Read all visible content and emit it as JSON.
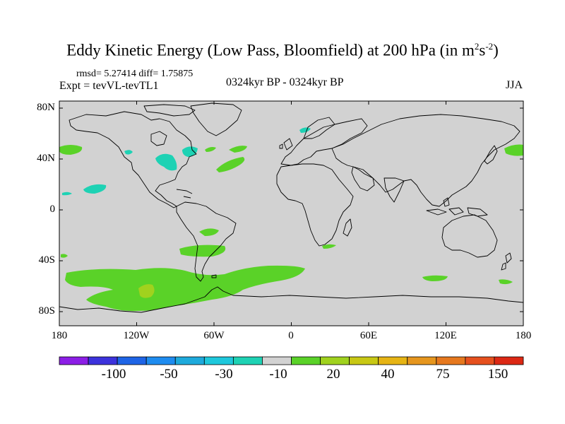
{
  "title": {
    "main": "Eddy Kinetic Energy (Low Pass, Bloomfield) at 200 hPa (in m",
    "sup1": "2",
    "mid": "s",
    "sup2": "-2",
    "end": ")"
  },
  "stats": "rmsd= 5.27414 diff= 1.75875",
  "expt": "Expt = tevVL-tevTL1",
  "center_label": "0324kyr BP - 0324kyr BP",
  "season": "JJA",
  "lat_labels": [
    "80N",
    "40N",
    "0",
    "40S",
    "80S"
  ],
  "lon_labels": [
    "180",
    "120W",
    "60W",
    "0",
    "60E",
    "120E",
    "180"
  ],
  "colorbar": {
    "colors": [
      "#8c1ee6",
      "#3c32dc",
      "#1e64e6",
      "#1e8cf0",
      "#1eaadc",
      "#1ec8dc",
      "#1ed2b4",
      "#d2d2d2",
      "#5ad228",
      "#a0d21e",
      "#c8c814",
      "#e6b414",
      "#e6961e",
      "#e6781e",
      "#e6501e",
      "#dc2814"
    ],
    "labels": [
      "-100",
      "-50",
      "-30",
      "-10",
      "20",
      "40",
      "75",
      "150"
    ]
  },
  "colors": {
    "land_ocean": "#d2d2d2",
    "positive_green": "#5ad228",
    "positive_yellow": "#a0d21e",
    "negative_cyan": "#1ed2b4",
    "coast": "#000000"
  }
}
